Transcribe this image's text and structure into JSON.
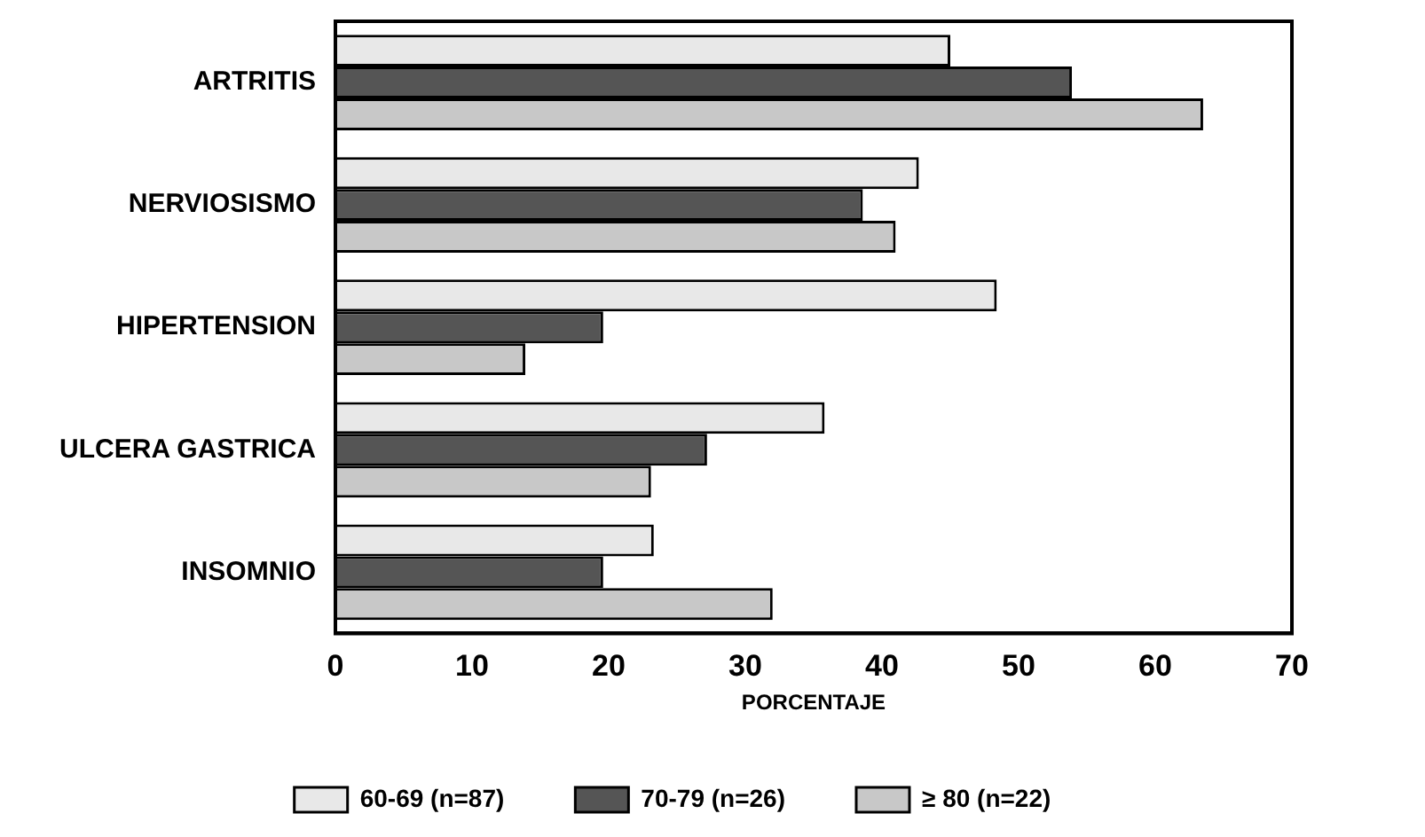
{
  "chart_data": {
    "type": "bar",
    "orientation": "horizontal",
    "xlabel": "PORCENTAJE",
    "categories": [
      "ARTRITIS",
      "NERVIOSISMO",
      "HIPERTENSION",
      "ULCERA GASTRICA",
      "INSOMNIO"
    ],
    "series": [
      {
        "name": "60-69 (n=87)",
        "color": "#e8e8e8",
        "values": [
          45,
          42.7,
          48.4,
          35.8,
          23.3
        ]
      },
      {
        "name": "70-79 (n=26)",
        "color": "#555555",
        "values": [
          53.9,
          38.6,
          19.6,
          27.2,
          19.6
        ]
      },
      {
        "name": "≥ 80 (n=22)",
        "color": "#c8c8c8",
        "values": [
          63.5,
          41,
          13.9,
          23.1,
          32
        ]
      }
    ],
    "xlim": [
      0,
      70
    ],
    "xticks": [
      0,
      10,
      20,
      30,
      40,
      50,
      60,
      70
    ],
    "grid": false,
    "legend": "bottom"
  }
}
